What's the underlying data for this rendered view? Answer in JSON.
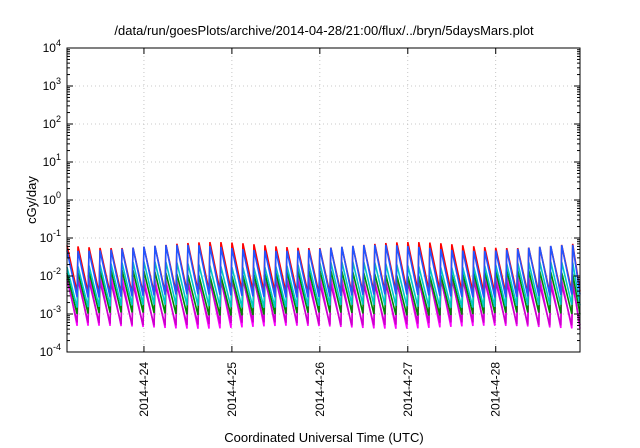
{
  "chart_data": {
    "type": "line",
    "title": "/data/run/goesPlots/archive/2014-04-28/21:00/flux/../bryn/5daysMars.plot",
    "xlabel": "Coordinated Universal Time (UTC)",
    "ylabel": "cGy/day",
    "yscale": "log",
    "ylim": [
      0.0001,
      10000
    ],
    "y_ticks": [
      {
        "base": "10",
        "exp": "-4"
      },
      {
        "base": "10",
        "exp": "-3"
      },
      {
        "base": "10",
        "exp": "-2"
      },
      {
        "base": "10",
        "exp": "-1"
      },
      {
        "base": "10",
        "exp": "0"
      },
      {
        "base": "10",
        "exp": "1"
      },
      {
        "base": "10",
        "exp": "2"
      },
      {
        "base": "10",
        "exp": "3"
      },
      {
        "base": "10",
        "exp": "4"
      }
    ],
    "xlim": [
      "2014-04-23 03:00",
      "2014-04-28 23:00"
    ],
    "x_ticks": [
      "2014-4-24",
      "2014-4-25",
      "2014-4-26",
      "2014-4-27",
      "2014-4-28"
    ],
    "grid": true,
    "legend": "none",
    "pattern": {
      "description_free": true,
      "cycles_per_day": 8,
      "shape": "sawtooth"
    },
    "series": [
      {
        "color": "#ff0000",
        "peak": 0.065,
        "trough": 0.0038
      },
      {
        "color": "#2255ff",
        "peak": 0.055,
        "trough": 0.003
      },
      {
        "color": "#00c8c8",
        "peak": 0.02,
        "trough": 0.0016
      },
      {
        "color": "#008800",
        "peak": 0.012,
        "trough": 0.001
      },
      {
        "color": "#ff00ff",
        "peak": 0.009,
        "trough": 0.00045
      },
      {
        "color": "#cc00cc",
        "peak": 0.007,
        "trough": 0.00055
      }
    ]
  }
}
